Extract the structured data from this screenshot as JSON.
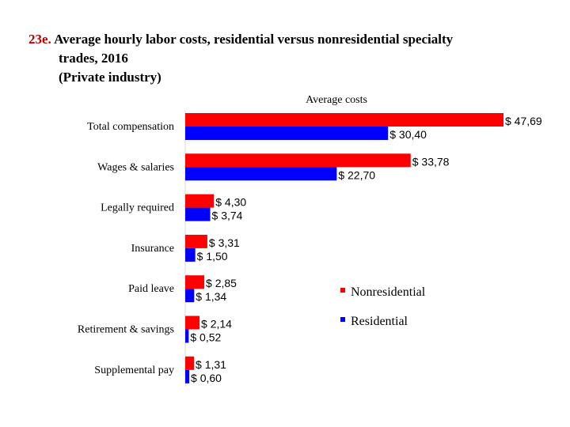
{
  "title": {
    "number": "23e.",
    "line1": "Average hourly labor costs, residential versus nonresidential specialty",
    "line2": "trades, 2016",
    "line3": "(Private industry)"
  },
  "chart_data": {
    "type": "bar",
    "orientation": "horizontal",
    "title": "Average costs",
    "categories": [
      "Total compensation",
      "Wages & salaries",
      "Legally required",
      "Insurance",
      "Paid leave",
      "Retirement & savings",
      "Supplemental pay"
    ],
    "series": [
      {
        "name": "Nonresidential",
        "color": "#ff0000",
        "values": [
          47.69,
          33.78,
          4.3,
          3.31,
          2.85,
          2.14,
          1.31
        ],
        "labels": [
          "$ 47,69",
          "$ 33,78",
          "$ 4,30",
          "$ 3,31",
          "$ 2,85",
          "$ 2,14",
          "$ 1,31"
        ]
      },
      {
        "name": "Residential",
        "color": "#0000ff",
        "values": [
          30.4,
          22.7,
          3.74,
          1.5,
          1.34,
          0.52,
          0.6
        ],
        "labels": [
          "$ 30,40",
          "$ 22,70",
          "$ 3,74",
          "$ 1,50",
          "$ 1,34",
          "$ 0,52",
          "$ 0,60"
        ]
      }
    ],
    "xlim": [
      0,
      47.69
    ],
    "grid": false,
    "legend_position": "right"
  }
}
